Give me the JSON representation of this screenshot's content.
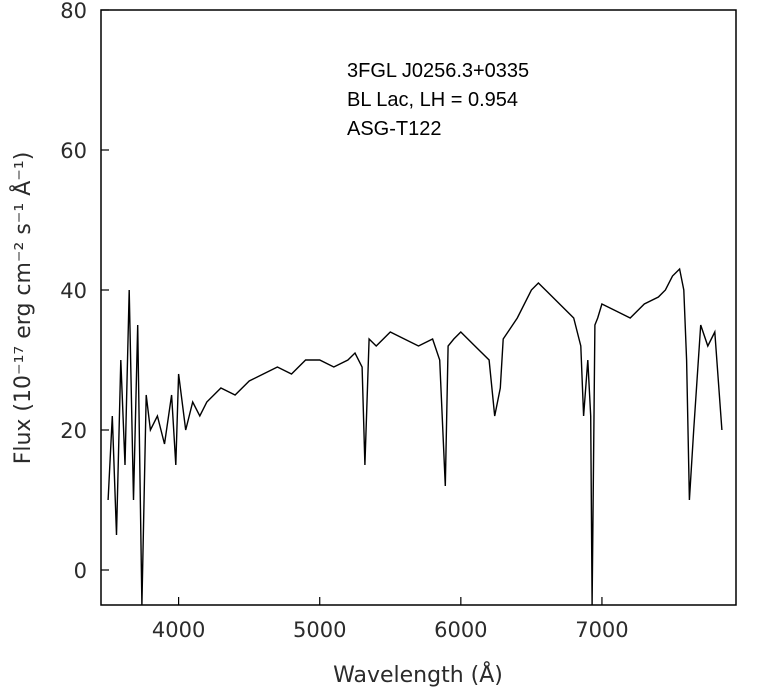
{
  "chart_data": {
    "type": "line",
    "xlabel": "Wavelength (Å)",
    "ylabel": "Flux (10⁻¹⁷ erg cm⁻² s⁻¹ Å⁻¹)",
    "xlim": [
      3450,
      7950
    ],
    "ylim": [
      -5,
      80
    ],
    "x_ticks": [
      4000,
      5000,
      6000,
      7000
    ],
    "y_ticks": [
      0,
      20,
      40,
      60,
      80
    ],
    "x_tick_labels": [
      "4000",
      "5000",
      "6000",
      "7000"
    ],
    "y_tick_labels": [
      "0",
      "20",
      "40",
      "60",
      "80"
    ],
    "grid": false,
    "annotations": [
      "3FGL J0256.3+0335",
      "BL Lac, LH = 0.954",
      "ASG-T122"
    ],
    "series": [
      {
        "color": "#000000",
        "x": [
          3500,
          3530,
          3560,
          3590,
          3620,
          3650,
          3680,
          3710,
          3740,
          3770,
          3800,
          3850,
          3900,
          3950,
          3980,
          4000,
          4050,
          4100,
          4150,
          4200,
          4300,
          4400,
          4500,
          4600,
          4700,
          4800,
          4900,
          5000,
          5100,
          5200,
          5250,
          5300,
          5320,
          5350,
          5400,
          5500,
          5600,
          5700,
          5800,
          5850,
          5890,
          5910,
          5950,
          6000,
          6100,
          6200,
          6240,
          6280,
          6300,
          6400,
          6500,
          6550,
          6600,
          6700,
          6800,
          6850,
          6870,
          6900,
          6920,
          6930,
          6950,
          6970,
          7000,
          7100,
          7200,
          7300,
          7400,
          7450,
          7500,
          7550,
          7580,
          7600,
          7620,
          7650,
          7700,
          7750,
          7800,
          7850
        ],
        "y": [
          10,
          22,
          5,
          30,
          15,
          40,
          10,
          35,
          -5,
          25,
          20,
          22,
          18,
          25,
          15,
          28,
          20,
          24,
          22,
          24,
          26,
          25,
          27,
          28,
          29,
          28,
          30,
          30,
          29,
          30,
          31,
          29,
          15,
          33,
          32,
          34,
          33,
          32,
          33,
          30,
          12,
          32,
          33,
          34,
          32,
          30,
          22,
          26,
          33,
          36,
          40,
          41,
          40,
          38,
          36,
          32,
          22,
          30,
          22,
          -5,
          35,
          36,
          38,
          37,
          36,
          38,
          39,
          40,
          42,
          43,
          40,
          30,
          10,
          20,
          35,
          32,
          34,
          20
        ]
      }
    ]
  }
}
